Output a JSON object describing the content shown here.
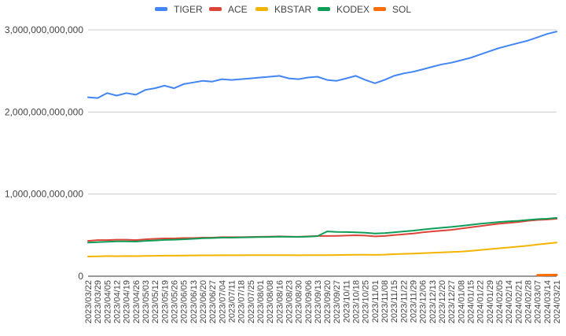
{
  "chart_data": {
    "type": "line",
    "title": "",
    "xlabel": "",
    "ylabel": "",
    "ylim": [
      0,
      3000000000000
    ],
    "grid": true,
    "legend_position": "top",
    "y_ticks": [
      {
        "value": 0,
        "label": "0"
      },
      {
        "value": 1000000000000,
        "label": "1,000,000,000,000"
      },
      {
        "value": 2000000000000,
        "label": "2,000,000,000,000"
      },
      {
        "value": 3000000000000,
        "label": "3,000,000,000,000"
      }
    ],
    "x_tick_labels": [
      "2023/03/22",
      "2023/03/29",
      "2023/04/05",
      "2023/04/12",
      "2023/04/19",
      "2023/04/26",
      "2023/05/03",
      "2023/05/12",
      "2023/05/19",
      "2023/05/26",
      "2023/06/05",
      "2023/06/13",
      "2023/06/20",
      "2023/06/27",
      "2023/07/04",
      "2023/07/11",
      "2023/07/18",
      "2023/07/25",
      "2023/08/01",
      "2023/08/08",
      "2023/08/16",
      "2023/08/23",
      "2023/08/30",
      "2023/09/06",
      "2023/09/13",
      "2023/09/20",
      "2023/09/27",
      "2023/10/11",
      "2023/10/18",
      "2023/10/25",
      "2023/11/01",
      "2023/11/08",
      "2023/11/15",
      "2023/11/22",
      "2023/11/29",
      "2023/12/06",
      "2023/12/13",
      "2023/12/20",
      "2023/12/27",
      "2024/01/08",
      "2024/01/15",
      "2024/01/22",
      "2024/01/29",
      "2024/02/05",
      "2024/02/14",
      "2024/02/21",
      "2024/02/28",
      "2024/03/07",
      "2024/03/14",
      "2024/03/21"
    ],
    "series": [
      {
        "name": "TIGER",
        "color": "#4285f4",
        "values": [
          2180000000000,
          2170000000000,
          2230000000000,
          2200000000000,
          2230000000000,
          2210000000000,
          2270000000000,
          2290000000000,
          2320000000000,
          2290000000000,
          2340000000000,
          2360000000000,
          2380000000000,
          2370000000000,
          2400000000000,
          2390000000000,
          2400000000000,
          2410000000000,
          2420000000000,
          2430000000000,
          2440000000000,
          2410000000000,
          2400000000000,
          2420000000000,
          2430000000000,
          2390000000000,
          2380000000000,
          2410000000000,
          2440000000000,
          2390000000000,
          2350000000000,
          2390000000000,
          2440000000000,
          2470000000000,
          2490000000000,
          2520000000000,
          2550000000000,
          2580000000000,
          2600000000000,
          2630000000000,
          2660000000000,
          2700000000000,
          2740000000000,
          2780000000000,
          2810000000000,
          2840000000000,
          2870000000000,
          2910000000000,
          2950000000000,
          2980000000000
        ]
      },
      {
        "name": "ACE",
        "color": "#db4437",
        "values": [
          430000000000,
          440000000000,
          440000000000,
          445000000000,
          445000000000,
          440000000000,
          450000000000,
          455000000000,
          460000000000,
          460000000000,
          465000000000,
          465000000000,
          470000000000,
          470000000000,
          475000000000,
          475000000000,
          475000000000,
          478000000000,
          480000000000,
          482000000000,
          485000000000,
          482000000000,
          480000000000,
          485000000000,
          490000000000,
          490000000000,
          492000000000,
          495000000000,
          498000000000,
          495000000000,
          485000000000,
          490000000000,
          500000000000,
          510000000000,
          520000000000,
          535000000000,
          545000000000,
          555000000000,
          565000000000,
          580000000000,
          595000000000,
          610000000000,
          625000000000,
          640000000000,
          650000000000,
          660000000000,
          675000000000,
          685000000000,
          690000000000,
          700000000000
        ]
      },
      {
        "name": "KBSTAR",
        "color": "#f4b400",
        "values": [
          240000000000,
          242000000000,
          245000000000,
          243000000000,
          245000000000,
          244000000000,
          246000000000,
          248000000000,
          250000000000,
          250000000000,
          252000000000,
          253000000000,
          254000000000,
          254000000000,
          255000000000,
          255000000000,
          255000000000,
          256000000000,
          256000000000,
          257000000000,
          257000000000,
          256000000000,
          255000000000,
          256000000000,
          257000000000,
          257000000000,
          258000000000,
          260000000000,
          262000000000,
          262000000000,
          260000000000,
          263000000000,
          268000000000,
          272000000000,
          276000000000,
          280000000000,
          285000000000,
          290000000000,
          295000000000,
          300000000000,
          308000000000,
          318000000000,
          330000000000,
          340000000000,
          350000000000,
          360000000000,
          372000000000,
          385000000000,
          398000000000,
          410000000000
        ]
      },
      {
        "name": "KODEX",
        "color": "#0f9d58",
        "values": [
          410000000000,
          415000000000,
          420000000000,
          425000000000,
          425000000000,
          422000000000,
          430000000000,
          435000000000,
          442000000000,
          445000000000,
          450000000000,
          455000000000,
          462000000000,
          465000000000,
          470000000000,
          470000000000,
          472000000000,
          474000000000,
          476000000000,
          478000000000,
          482000000000,
          480000000000,
          478000000000,
          482000000000,
          488000000000,
          545000000000,
          540000000000,
          538000000000,
          535000000000,
          530000000000,
          520000000000,
          525000000000,
          535000000000,
          545000000000,
          555000000000,
          568000000000,
          580000000000,
          590000000000,
          600000000000,
          612000000000,
          625000000000,
          638000000000,
          650000000000,
          660000000000,
          668000000000,
          675000000000,
          685000000000,
          695000000000,
          700000000000,
          710000000000
        ]
      },
      {
        "name": "SOL",
        "color": "#ff6d01",
        "start_index": 47,
        "values": [
          12000000000,
          14000000000,
          15000000000
        ]
      }
    ]
  }
}
